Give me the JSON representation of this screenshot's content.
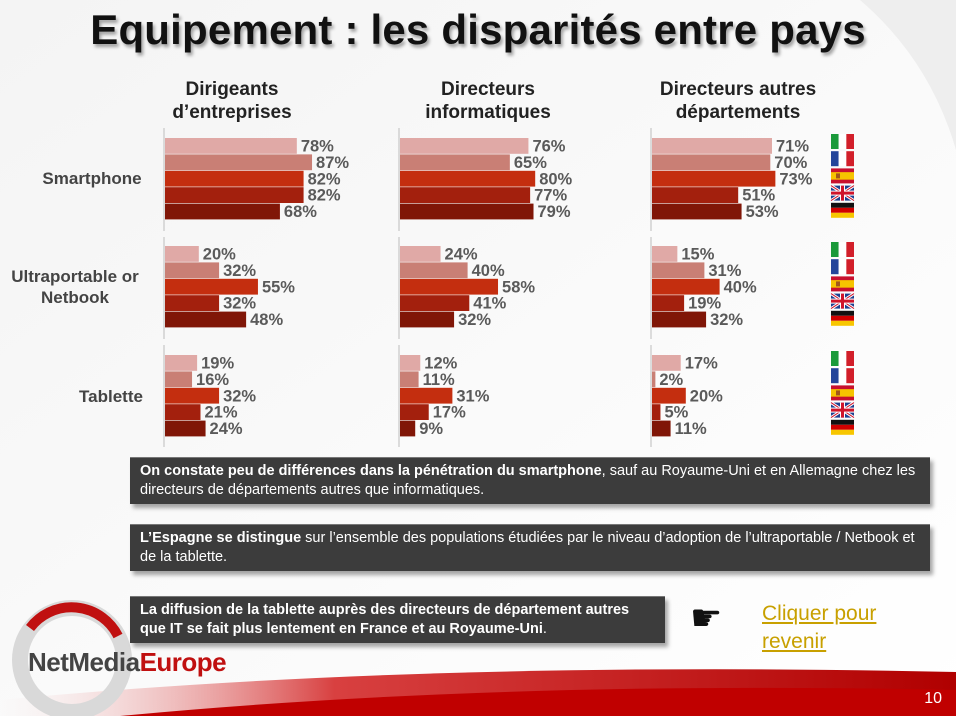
{
  "title": "Equipement : les disparités entre pays",
  "chart_data": {
    "type": "bar",
    "orientation": "horizontal",
    "columns": [
      {
        "name_lines": [
          "Dirigeants",
          "d’entreprises"
        ]
      },
      {
        "name_lines": [
          "Directeurs",
          "informatiques"
        ]
      },
      {
        "name_lines": [
          "Directeurs autres",
          "départements"
        ]
      }
    ],
    "rows": [
      {
        "name_lines": [
          "Smartphone"
        ]
      },
      {
        "name_lines": [
          "Ultraportable or",
          "Netbook"
        ]
      },
      {
        "name_lines": [
          "Tablette"
        ]
      }
    ],
    "countries": [
      "Italie",
      "France",
      "Espagne",
      "Royaume-Uni",
      "Allemagne"
    ],
    "bar_colors": [
      "#e0a9a6",
      "#c97f75",
      "#c42e0f",
      "#a3200d",
      "#801607"
    ],
    "values": [
      [
        [
          78,
          87,
          82,
          82,
          68
        ],
        [
          76,
          65,
          80,
          77,
          79
        ],
        [
          71,
          70,
          73,
          51,
          53
        ]
      ],
      [
        [
          20,
          32,
          55,
          32,
          48
        ],
        [
          24,
          40,
          58,
          41,
          32
        ],
        [
          15,
          31,
          40,
          19,
          32
        ]
      ],
      [
        [
          19,
          16,
          32,
          21,
          24
        ],
        [
          12,
          11,
          31,
          17,
          9
        ],
        [
          17,
          2,
          20,
          5,
          11
        ]
      ]
    ],
    "unit": "%",
    "xlim": [
      0,
      100
    ]
  },
  "notes": [
    {
      "bold": "On constate peu de différences dans la pénétration du smartphone",
      "rest": ", sauf au Royaume-Uni et en Allemagne chez les directeurs de départements autres que informatiques."
    },
    {
      "bold": "L’Espagne se distingue",
      "rest": " sur l’ensemble des populations étudiées par le niveau d’adoption de l’ultraportable / Netbook et de la tablette."
    },
    {
      "bold": "La diffusion de la tablette auprès des directeurs de département autres que IT se fait plus lentement en France et au Royaume-Uni",
      "rest": "."
    }
  ],
  "link_lines": [
    "Cliquer pour",
    "revenir"
  ],
  "hand_icon": "☛",
  "logo": {
    "part1": "NetMedia",
    "part2": "Europe"
  },
  "page_number": "10"
}
